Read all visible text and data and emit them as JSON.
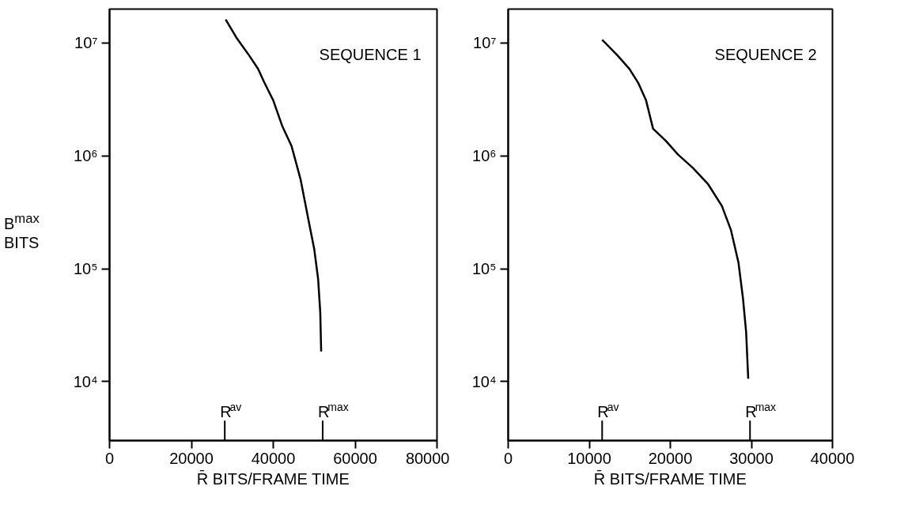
{
  "chart_data": [
    {
      "type": "line",
      "xlabel": "R̄ BITS/FRAME TIME",
      "ylabel": "B$^{max}$ BITS",
      "log": "y",
      "annotations": [
        "SEQUENCE 1"
      ],
      "ref_lines": [
        {
          "axis": "x",
          "value": 28150,
          "label": "R$^{av}$"
        },
        {
          "axis": "x",
          "value": 52070,
          "label": "R$^{max}$"
        }
      ],
      "series": [
        {
          "color": "#000000",
          "x": [
            28370,
            31110,
            34070,
            36300,
            37780,
            40000,
            42220,
            44440,
            46670,
            48520,
            50000,
            50960,
            51480,
            51700
          ],
          "values": [
            16200000,
            11000000,
            7800000,
            5900000,
            4500000,
            3100000,
            1830000,
            1230000,
            620000,
            280000,
            150000,
            81000,
            41000,
            18500
          ]
        }
      ],
      "xlim": [
        0,
        80000
      ],
      "xticks": [
        0,
        20000,
        40000,
        60000,
        80000
      ],
      "ylim": [
        3000,
        20000000
      ],
      "yticks": [
        {
          "value": 10000,
          "label": "10⁴"
        },
        {
          "value": 100000,
          "label": "10⁵"
        },
        {
          "value": 1000000,
          "label": "10⁶"
        },
        {
          "value": 10000000,
          "label": "10⁷"
        }
      ]
    },
    {
      "type": "line",
      "xlabel": "R̄ BITS/FRAME TIME",
      "log": "y",
      "annotations": [
        "SEQUENCE 2"
      ],
      "ref_lines": [
        {
          "axis": "x",
          "value": 11590,
          "label": "R$^{av}$"
        },
        {
          "axis": "x",
          "value": 29830,
          "label": "R$^{max}$"
        }
      ],
      "series": [
        {
          "color": "#000000",
          "x": [
            11590,
            13460,
            14950,
            16070,
            17010,
            17870,
            19440,
            20930,
            22800,
            24670,
            26360,
            27480,
            28410,
            28970,
            29350,
            29610
          ],
          "values": [
            10700000,
            7800000,
            5900000,
            4400000,
            3100000,
            1740000,
            1360000,
            1030000,
            780000,
            560000,
            360000,
            220000,
            113000,
            54000,
            27500,
            10600
          ]
        }
      ],
      "xlim": [
        0,
        40000
      ],
      "xticks": [
        0,
        10000,
        20000,
        30000,
        40000
      ],
      "ylim": [
        3000,
        20000000
      ],
      "yticks": [
        {
          "value": 10000,
          "label": "10⁴"
        },
        {
          "value": 100000,
          "label": "10⁵"
        },
        {
          "value": 1000000,
          "label": "10⁶"
        },
        {
          "value": 10000000,
          "label": "10⁷"
        }
      ]
    }
  ]
}
